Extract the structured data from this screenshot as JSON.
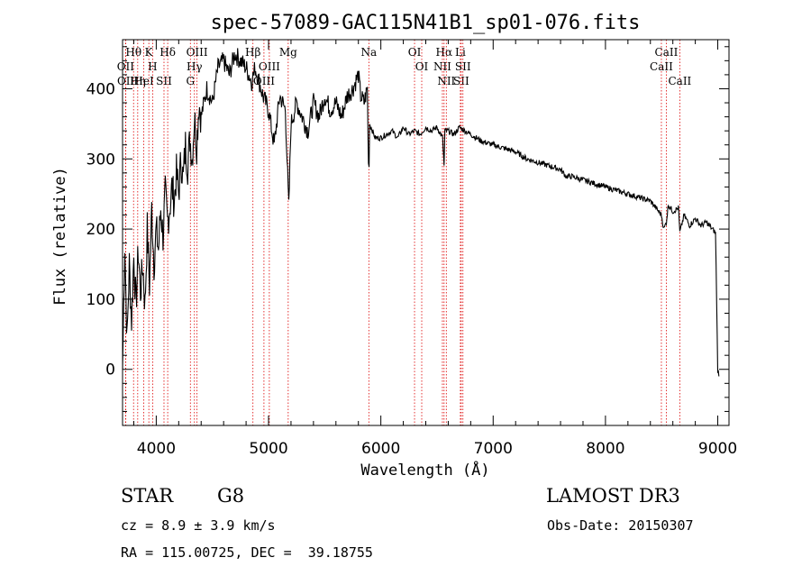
{
  "chart_data": {
    "type": "line",
    "title": "spec-57089-GAC115N41B1_sp01-076.fits",
    "xlabel": "Wavelength (Å)",
    "ylabel": "Flux (relative)",
    "xlim": [
      3700,
      9100
    ],
    "ylim": [
      -80,
      470
    ],
    "xticks": [
      4000,
      5000,
      6000,
      7000,
      8000,
      9000
    ],
    "xtick_labels": [
      "4000",
      "5000",
      "6000",
      "7000",
      "8000",
      "9000"
    ],
    "yticks": [
      0,
      100,
      200,
      300,
      400
    ],
    "ytick_labels": [
      "0",
      "100",
      "200",
      "300",
      "400"
    ],
    "series": [
      {
        "name": "flux",
        "x": [
          3700,
          3720,
          3740,
          3760,
          3780,
          3800,
          3820,
          3840,
          3860,
          3880,
          3900,
          3920,
          3940,
          3960,
          3980,
          4000,
          4020,
          4040,
          4060,
          4080,
          4100,
          4120,
          4140,
          4160,
          4180,
          4200,
          4220,
          4240,
          4260,
          4280,
          4300,
          4320,
          4340,
          4360,
          4380,
          4400,
          4450,
          4500,
          4550,
          4600,
          4650,
          4700,
          4750,
          4800,
          4850,
          4880,
          4900,
          4950,
          5000,
          5050,
          5100,
          5150,
          5180,
          5200,
          5250,
          5300,
          5350,
          5400,
          5450,
          5500,
          5550,
          5600,
          5650,
          5700,
          5750,
          5800,
          5820,
          5850,
          5880,
          5890,
          5895,
          5900,
          5950,
          6000,
          6050,
          6100,
          6150,
          6200,
          6250,
          6300,
          6350,
          6400,
          6450,
          6500,
          6550,
          6563,
          6570,
          6600,
          6650,
          6700,
          6750,
          6800,
          6850,
          6900,
          7000,
          7100,
          7200,
          7300,
          7400,
          7500,
          7600,
          7650,
          7700,
          7800,
          7900,
          8000,
          8100,
          8200,
          8300,
          8400,
          8450,
          8498,
          8520,
          8542,
          8560,
          8600,
          8650,
          8662,
          8700,
          8750,
          8800,
          8850,
          8900,
          8950,
          8980,
          9000,
          9010
        ],
        "values": [
          0,
          180,
          40,
          150,
          70,
          160,
          90,
          170,
          110,
          150,
          90,
          200,
          120,
          230,
          150,
          200,
          170,
          230,
          190,
          250,
          210,
          230,
          260,
          240,
          280,
          250,
          300,
          270,
          320,
          290,
          330,
          300,
          360,
          320,
          380,
          360,
          400,
          380,
          430,
          440,
          420,
          450,
          440,
          430,
          410,
          430,
          420,
          390,
          370,
          320,
          390,
          370,
          230,
          350,
          380,
          360,
          340,
          380,
          360,
          390,
          370,
          380,
          360,
          390,
          400,
          420,
          390,
          380,
          400,
          290,
          300,
          350,
          330,
          330,
          335,
          340,
          330,
          345,
          335,
          340,
          335,
          345,
          340,
          345,
          330,
          290,
          340,
          340,
          335,
          345,
          340,
          335,
          330,
          325,
          320,
          315,
          310,
          300,
          295,
          290,
          285,
          275,
          275,
          270,
          265,
          260,
          255,
          250,
          245,
          240,
          230,
          220,
          200,
          210,
          235,
          225,
          230,
          195,
          220,
          205,
          215,
          205,
          210,
          200,
          195,
          0,
          -10
        ]
      }
    ],
    "line_labels": [
      {
        "label": "Hθ",
        "wavelength": 3798
      },
      {
        "label": "OII",
        "wavelength": 3727
      },
      {
        "label": "OII",
        "wavelength": 3729
      },
      {
        "label": "HeI",
        "wavelength": 3889
      },
      {
        "label": "Hη",
        "wavelength": 3835
      },
      {
        "label": "K",
        "wavelength": 3934
      },
      {
        "label": "H",
        "wavelength": 3968
      },
      {
        "label": "SII",
        "wavelength": 4069
      },
      {
        "label": "Hδ",
        "wavelength": 4102
      },
      {
        "label": "OIII",
        "wavelength": 4363
      },
      {
        "label": "Hγ",
        "wavelength": 4340
      },
      {
        "label": "G",
        "wavelength": 4304
      },
      {
        "label": "Hβ",
        "wavelength": 4861
      },
      {
        "label": "OIII",
        "wavelength": 5007
      },
      {
        "label": "OIII",
        "wavelength": 4959
      },
      {
        "label": "Mg",
        "wavelength": 5175
      },
      {
        "label": "Na",
        "wavelength": 5893
      },
      {
        "label": "OI",
        "wavelength": 6300
      },
      {
        "label": "OI",
        "wavelength": 6364
      },
      {
        "label": "Hα",
        "wavelength": 6563
      },
      {
        "label": "NII",
        "wavelength": 6548
      },
      {
        "label": "NII",
        "wavelength": 6583
      },
      {
        "label": "SII",
        "wavelength": 6716
      },
      {
        "label": "Li",
        "wavelength": 6708
      },
      {
        "label": "SII",
        "wavelength": 6731
      },
      {
        "label": "CaII",
        "wavelength": 8542
      },
      {
        "label": "CaII",
        "wavelength": 8498
      },
      {
        "label": "CaII",
        "wavelength": 8662
      }
    ]
  },
  "info": {
    "class": "STAR",
    "subclass": "G8",
    "release": "LAMOST DR3",
    "cz": "cz = 8.9 ± 3.9 km/s",
    "obs_date": "Obs-Date: 20150307",
    "radec": "RA = 115.00725, DEC =  39.18755"
  }
}
